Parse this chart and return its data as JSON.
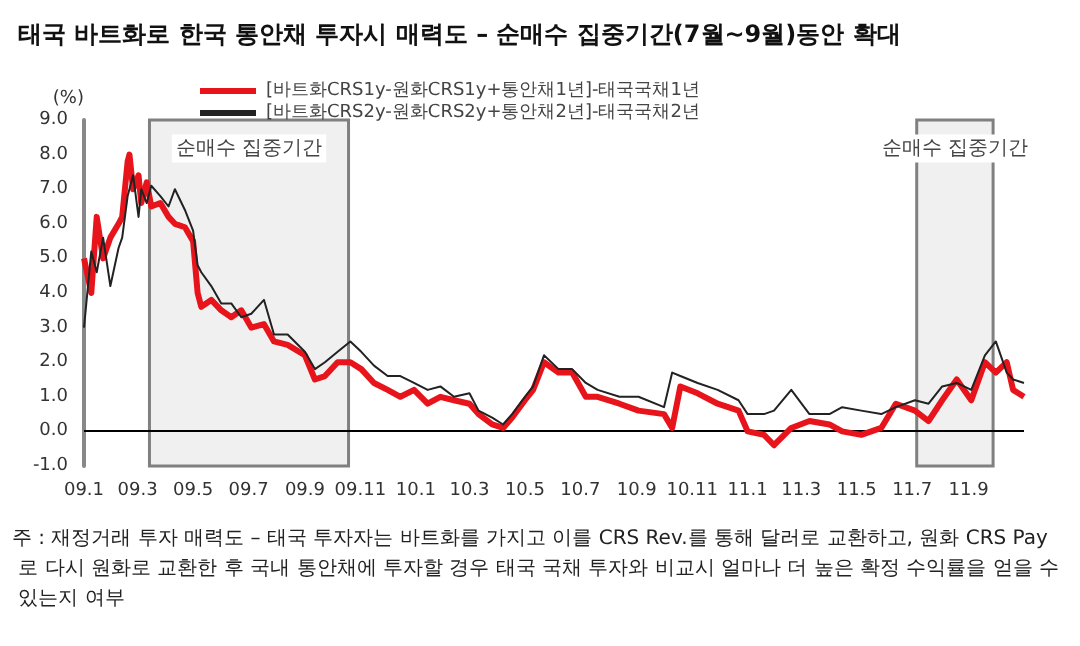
{
  "chart_data": {
    "type": "line",
    "title": "태국 바트화로 한국 통안채 투자시 매력도 – 순매수 집중기간(7월~9월)동안 확대",
    "ylabel": "(%)",
    "annotations": [
      "주 : 재정거래 투자 매력도 – 태국 투자자는 바트화를 가지고 이를 CRS Rev.를 통해 달러로 교환하고, 원화 CRS Pay 로 다시 원화로 교환한 후 국내 통안채에 투자할 경우 태국 국채 투자와 비교시 얼마나 더 높은 확정 수익률을 얻을 수 있는지 여부"
    ],
    "legend": "top left",
    "grid": false,
    "marker": "none",
    "line_style": "solid",
    "xlim": [
      "2009-01-01",
      "2011-11-01"
    ],
    "xticks": [
      {
        "value": "2009-01-01",
        "label": "09.1"
      },
      {
        "value": "2009-03-01",
        "label": "09.3"
      },
      {
        "value": "2009-05-01",
        "label": "09.5"
      },
      {
        "value": "2009-07-01",
        "label": "09.7"
      },
      {
        "value": "2009-09-01",
        "label": "09.9"
      },
      {
        "value": "2009-11-01",
        "label": "09.11"
      },
      {
        "value": "2010-01-01",
        "label": "10.1"
      },
      {
        "value": "2010-03-01",
        "label": "10.3"
      },
      {
        "value": "2010-05-01",
        "label": "10.5"
      },
      {
        "value": "2010-07-01",
        "label": "10.7"
      },
      {
        "value": "2010-09-01",
        "label": "10.9"
      },
      {
        "value": "2010-11-01",
        "label": "10.11"
      },
      {
        "value": "2011-01-01",
        "label": "11.1"
      },
      {
        "value": "2011-03-01",
        "label": "11.3"
      },
      {
        "value": "2011-05-01",
        "label": "11.5"
      },
      {
        "value": "2011-07-01",
        "label": "11.7"
      },
      {
        "value": "2011-09-01",
        "label": "11.9"
      }
    ],
    "ylim": [
      -1,
      9
    ],
    "yticks": [
      {
        "value": -1,
        "label": "-1.0"
      },
      {
        "value": 0,
        "label": "0.0"
      },
      {
        "value": 1,
        "label": "1.0"
      },
      {
        "value": 2,
        "label": "2.0"
      },
      {
        "value": 3,
        "label": "3.0"
      },
      {
        "value": 4,
        "label": "4.0"
      },
      {
        "value": 5,
        "label": "5.0"
      },
      {
        "value": 6,
        "label": "6.0"
      },
      {
        "value": 7,
        "label": "7.0"
      },
      {
        "value": 8,
        "label": "8.0"
      },
      {
        "value": 9,
        "label": "9.0"
      }
    ],
    "ref_lines": [
      {
        "axis": "y",
        "value": 0,
        "color": "#000000"
      }
    ],
    "bands": [
      {
        "axis": "x",
        "from": "2009-03-14",
        "to": "2009-10-19",
        "label": "순매수 집중기간",
        "color": "#808080"
      },
      {
        "axis": "x",
        "from": "2011-07-06",
        "to": "2011-09-28",
        "label": "순매수 집중기간",
        "color": "#808080"
      }
    ],
    "series": [
      {
        "name": "[바트화CRS1y-원화CRS1y+통안채1년]-태국국채1년",
        "color": "#e8141b",
        "x": [
          "2009-01-01",
          "2009-01-09",
          "2009-01-15",
          "2009-01-22",
          "2009-01-30",
          "2009-02-08",
          "2009-02-12",
          "2009-02-18",
          "2009-02-20",
          "2009-02-24",
          "2009-03-02",
          "2009-03-05",
          "2009-03-11",
          "2009-03-16",
          "2009-03-26",
          "2009-04-04",
          "2009-04-11",
          "2009-04-22",
          "2009-05-01",
          "2009-05-06",
          "2009-05-10",
          "2009-05-21",
          "2009-06-01",
          "2009-06-12",
          "2009-06-23",
          "2009-07-04",
          "2009-07-18",
          "2009-07-29",
          "2009-08-13",
          "2009-09-01",
          "2009-09-12",
          "2009-09-23",
          "2009-10-07",
          "2009-10-21",
          "2009-11-02",
          "2009-11-16",
          "2009-12-01",
          "2009-12-15",
          "2009-12-30",
          "2010-01-14",
          "2010-01-28",
          "2010-02-12",
          "2010-03-01",
          "2010-03-11",
          "2010-03-26",
          "2010-04-07",
          "2010-04-17",
          "2010-05-01",
          "2010-05-10",
          "2010-05-22",
          "2010-06-07",
          "2010-06-22",
          "2010-07-07",
          "2010-07-20",
          "2010-08-13",
          "2010-09-03",
          "2010-10-01",
          "2010-10-10",
          "2010-10-19",
          "2010-11-07",
          "2010-11-29",
          "2010-12-22",
          "2011-01-01",
          "2011-01-19",
          "2011-01-30",
          "2011-02-18",
          "2011-03-10",
          "2011-04-01",
          "2011-04-15",
          "2011-05-06",
          "2011-05-28",
          "2011-06-13",
          "2011-07-04",
          "2011-07-19",
          "2011-08-03",
          "2011-08-19",
          "2011-09-04",
          "2011-09-19",
          "2011-10-01",
          "2011-10-13",
          "2011-10-20",
          "2011-11-01"
        ],
        "values": [
          5.0,
          4.0,
          6.2,
          5.0,
          5.6,
          6.0,
          6.2,
          7.8,
          8.0,
          7.0,
          7.4,
          6.6,
          7.2,
          6.5,
          6.6,
          6.2,
          6.0,
          5.9,
          5.5,
          4.0,
          3.6,
          3.8,
          3.5,
          3.3,
          3.5,
          3.0,
          3.1,
          2.6,
          2.5,
          2.2,
          1.5,
          1.6,
          2.0,
          2.0,
          1.8,
          1.4,
          1.2,
          1.0,
          1.2,
          0.8,
          1.0,
          0.9,
          0.8,
          0.5,
          0.2,
          0.1,
          0.4,
          0.9,
          1.2,
          2.0,
          1.7,
          1.7,
          1.0,
          1.0,
          0.8,
          0.6,
          0.5,
          0.1,
          1.3,
          1.1,
          0.8,
          0.6,
          0.0,
          -0.1,
          -0.4,
          0.1,
          0.3,
          0.2,
          0.0,
          -0.1,
          0.1,
          0.8,
          0.6,
          0.3,
          0.9,
          1.5,
          0.9,
          2.0,
          1.7,
          2.0,
          1.2,
          1.0
        ]
      },
      {
        "name": "[바트화CRS2y-원화CRS2y+통안채2년]-태국국채2년",
        "color": "#222222",
        "x": [
          "2009-01-01",
          "2009-01-09",
          "2009-01-15",
          "2009-01-22",
          "2009-01-30",
          "2009-02-08",
          "2009-02-12",
          "2009-02-18",
          "2009-02-24",
          "2009-03-02",
          "2009-03-05",
          "2009-03-11",
          "2009-03-16",
          "2009-03-26",
          "2009-04-04",
          "2009-04-11",
          "2009-04-22",
          "2009-05-01",
          "2009-05-06",
          "2009-05-10",
          "2009-05-21",
          "2009-06-01",
          "2009-06-12",
          "2009-06-23",
          "2009-07-04",
          "2009-07-18",
          "2009-07-29",
          "2009-08-13",
          "2009-09-01",
          "2009-09-12",
          "2009-09-23",
          "2009-10-07",
          "2009-10-21",
          "2009-11-02",
          "2009-11-16",
          "2009-12-01",
          "2009-12-15",
          "2009-12-30",
          "2010-01-14",
          "2010-01-28",
          "2010-02-12",
          "2010-03-01",
          "2010-03-11",
          "2010-03-26",
          "2010-04-07",
          "2010-04-17",
          "2010-05-01",
          "2010-05-10",
          "2010-05-22",
          "2010-06-07",
          "2010-06-22",
          "2010-07-07",
          "2010-07-20",
          "2010-08-13",
          "2010-09-03",
          "2010-10-01",
          "2010-10-10",
          "2010-10-19",
          "2010-11-07",
          "2010-11-29",
          "2010-12-22",
          "2011-01-01",
          "2011-01-19",
          "2011-01-30",
          "2011-02-18",
          "2011-03-10",
          "2011-04-01",
          "2011-04-15",
          "2011-05-06",
          "2011-05-28",
          "2011-06-13",
          "2011-07-04",
          "2011-07-19",
          "2011-08-03",
          "2011-08-19",
          "2011-09-04",
          "2011-09-19",
          "2011-10-01",
          "2011-10-13",
          "2011-10-20",
          "2011-11-01"
        ],
        "values": [
          3.0,
          5.2,
          4.6,
          5.6,
          4.2,
          5.3,
          5.6,
          6.8,
          7.4,
          6.2,
          7.0,
          6.6,
          7.1,
          6.8,
          6.5,
          7.0,
          6.4,
          5.8,
          4.8,
          4.6,
          4.2,
          3.7,
          3.7,
          3.3,
          3.4,
          3.8,
          2.8,
          2.8,
          2.3,
          1.8,
          2.0,
          2.3,
          2.6,
          2.3,
          1.9,
          1.6,
          1.6,
          1.4,
          1.2,
          1.3,
          1.0,
          1.1,
          0.6,
          0.4,
          0.2,
          0.5,
          1.0,
          1.3,
          2.2,
          1.8,
          1.8,
          1.4,
          1.2,
          1.0,
          1.0,
          0.7,
          1.7,
          1.6,
          1.4,
          1.2,
          0.9,
          0.5,
          0.5,
          0.6,
          1.2,
          0.5,
          0.5,
          0.7,
          0.6,
          0.5,
          0.7,
          0.9,
          0.8,
          1.3,
          1.4,
          1.2,
          2.2,
          2.6,
          1.7,
          1.5,
          1.4
        ]
      }
    ]
  }
}
